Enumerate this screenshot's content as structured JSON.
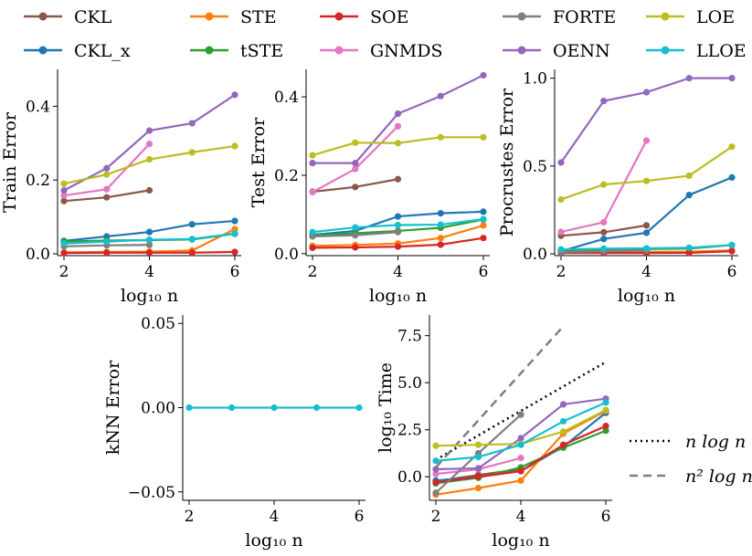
{
  "legend": [
    {
      "name": "CKL",
      "color": "#8c564b"
    },
    {
      "name": "CKL_x",
      "color": "#1f77b4"
    },
    {
      "name": "STE",
      "color": "#ff7f0e"
    },
    {
      "name": "tSTE",
      "color": "#2ca02c"
    },
    {
      "name": "SOE",
      "color": "#d62728"
    },
    {
      "name": "GNMDS",
      "color": "#e377c2"
    },
    {
      "name": "FORTE",
      "color": "#7f7f7f"
    },
    {
      "name": "OENN",
      "color": "#9467bd"
    },
    {
      "name": "LOE",
      "color": "#bcbd22"
    },
    {
      "name": "LLOE",
      "color": "#17becf"
    }
  ],
  "complexity_legend": [
    {
      "name": "n log n",
      "color": "#000000",
      "dash": "dotted"
    },
    {
      "name": "n² log n",
      "color": "#7f7f7f",
      "dash": "dashed"
    }
  ],
  "chart_data": [
    {
      "id": "train",
      "type": "line",
      "ylabel": "Train Error",
      "xlabel": "log₁₀ n",
      "xlim": [
        1.85,
        6.15
      ],
      "ylim": [
        -0.005,
        0.5
      ],
      "xticks": [
        "2",
        "4",
        "6"
      ],
      "yticks": [
        "0.0",
        "0.2",
        "0.4"
      ],
      "series": [
        {
          "name": "CKL",
          "x": [
            2,
            3,
            4
          ],
          "y": [
            0.143,
            0.153,
            0.172
          ]
        },
        {
          "name": "CKL_x",
          "x": [
            2,
            3,
            4,
            5,
            6
          ],
          "y": [
            0.035,
            0.047,
            0.059,
            0.08,
            0.089
          ]
        },
        {
          "name": "STE",
          "x": [
            2,
            3,
            4,
            5,
            6
          ],
          "y": [
            0.004,
            0.005,
            0.006,
            0.009,
            0.067
          ]
        },
        {
          "name": "tSTE",
          "x": [
            2,
            3,
            4,
            5,
            6
          ],
          "y": [
            0.033,
            0.036,
            0.037,
            0.039,
            0.054
          ]
        },
        {
          "name": "SOE",
          "x": [
            2,
            3,
            4,
            5,
            6
          ],
          "y": [
            0.002,
            0.003,
            0.003,
            0.003,
            0.005
          ]
        },
        {
          "name": "GNMDS",
          "x": [
            2,
            3,
            4
          ],
          "y": [
            0.158,
            0.175,
            0.298
          ]
        },
        {
          "name": "FORTE",
          "x": [
            2,
            3,
            4
          ],
          "y": [
            0.02,
            0.023,
            0.024
          ]
        },
        {
          "name": "OENN",
          "x": [
            2,
            3,
            4,
            5,
            6
          ],
          "y": [
            0.172,
            0.232,
            0.334,
            0.354,
            0.431
          ]
        },
        {
          "name": "LOE",
          "x": [
            2,
            3,
            4,
            5,
            6
          ],
          "y": [
            0.19,
            0.215,
            0.256,
            0.275,
            0.292
          ]
        },
        {
          "name": "LLOE",
          "x": [
            2,
            3,
            4,
            5,
            6
          ],
          "y": [
            0.028,
            0.033,
            0.038,
            0.04,
            0.055
          ]
        }
      ]
    },
    {
      "id": "test",
      "type": "line",
      "ylabel": "Test Error",
      "xlabel": "log₁₀ n",
      "xlim": [
        1.85,
        6.15
      ],
      "ylim": [
        -0.005,
        0.47
      ],
      "xticks": [
        "2",
        "4",
        "6"
      ],
      "yticks": [
        "0.0",
        "0.2",
        "0.4"
      ],
      "series": [
        {
          "name": "CKL",
          "x": [
            2,
            3,
            4
          ],
          "y": [
            0.158,
            0.17,
            0.19
          ]
        },
        {
          "name": "CKL_x",
          "x": [
            2,
            3,
            4,
            5,
            6
          ],
          "y": [
            0.048,
            0.058,
            0.095,
            0.103,
            0.107
          ]
        },
        {
          "name": "STE",
          "x": [
            2,
            3,
            4,
            5,
            6
          ],
          "y": [
            0.02,
            0.022,
            0.026,
            0.04,
            0.072
          ]
        },
        {
          "name": "tSTE",
          "x": [
            2,
            3,
            4,
            5,
            6
          ],
          "y": [
            0.046,
            0.052,
            0.058,
            0.066,
            0.087
          ]
        },
        {
          "name": "SOE",
          "x": [
            2,
            3,
            4,
            5,
            6
          ],
          "y": [
            0.015,
            0.016,
            0.018,
            0.023,
            0.04
          ]
        },
        {
          "name": "GNMDS",
          "x": [
            2,
            3,
            4
          ],
          "y": [
            0.157,
            0.216,
            0.325
          ]
        },
        {
          "name": "FORTE",
          "x": [
            2,
            3,
            4
          ],
          "y": [
            0.044,
            0.047,
            0.055
          ]
        },
        {
          "name": "OENN",
          "x": [
            2,
            3,
            4,
            5,
            6
          ],
          "y": [
            0.231,
            0.231,
            0.357,
            0.402,
            0.455
          ]
        },
        {
          "name": "LOE",
          "x": [
            2,
            3,
            4,
            5,
            6
          ],
          "y": [
            0.251,
            0.283,
            0.282,
            0.297,
            0.297
          ]
        },
        {
          "name": "LLOE",
          "x": [
            2,
            3,
            4,
            5,
            6
          ],
          "y": [
            0.055,
            0.067,
            0.073,
            0.074,
            0.088
          ]
        }
      ]
    },
    {
      "id": "procrustes",
      "type": "line",
      "ylabel": "Procrustes Error",
      "xlabel": "log₁₀ n",
      "xlim": [
        1.85,
        6.15
      ],
      "ylim": [
        -0.01,
        1.05
      ],
      "xticks": [
        "2",
        "4",
        "6"
      ],
      "yticks": [
        "0.0",
        "0.5",
        "1.0"
      ],
      "series": [
        {
          "name": "CKL",
          "x": [
            2,
            3,
            4
          ],
          "y": [
            0.103,
            0.123,
            0.162
          ]
        },
        {
          "name": "CKL_x",
          "x": [
            2,
            3,
            4,
            5,
            6
          ],
          "y": [
            0.015,
            0.085,
            0.12,
            0.335,
            0.435
          ]
        },
        {
          "name": "STE",
          "x": [
            2,
            3,
            4,
            5,
            6
          ],
          "y": [
            0.008,
            0.01,
            0.012,
            0.013,
            0.02
          ]
        },
        {
          "name": "tSTE",
          "x": [
            2,
            3,
            4,
            5,
            6
          ],
          "y": [
            0.02,
            0.025,
            0.028,
            0.03,
            0.05
          ]
        },
        {
          "name": "SOE",
          "x": [
            2,
            3,
            4,
            5,
            6
          ],
          "y": [
            0.005,
            0.005,
            0.005,
            0.006,
            0.015
          ]
        },
        {
          "name": "GNMDS",
          "x": [
            2,
            3,
            4
          ],
          "y": [
            0.125,
            0.18,
            0.645
          ]
        },
        {
          "name": "FORTE",
          "x": [
            2,
            3,
            4
          ],
          "y": [
            0.01,
            0.015,
            0.02
          ]
        },
        {
          "name": "OENN",
          "x": [
            2,
            3,
            4,
            5,
            6
          ],
          "y": [
            0.52,
            0.87,
            0.92,
            1.0,
            1.0
          ]
        },
        {
          "name": "LOE",
          "x": [
            2,
            3,
            4,
            5,
            6
          ],
          "y": [
            0.31,
            0.395,
            0.415,
            0.445,
            0.61
          ]
        },
        {
          "name": "LLOE",
          "x": [
            2,
            3,
            4,
            5,
            6
          ],
          "y": [
            0.025,
            0.03,
            0.032,
            0.035,
            0.05
          ]
        }
      ]
    },
    {
      "id": "knn",
      "type": "line",
      "ylabel": "kNN Error",
      "xlabel": "log₁₀ n",
      "xlim": [
        1.85,
        6.15
      ],
      "ylim": [
        -0.055,
        0.055
      ],
      "xticks": [
        "2",
        "4",
        "6"
      ],
      "yticks": [
        "−0.05",
        "0.00",
        "0.05"
      ],
      "series": [
        {
          "name": "LLOE",
          "x": [
            2,
            3,
            4,
            5,
            6
          ],
          "y": [
            0.0,
            0.0,
            0.0,
            0.0,
            0.0
          ]
        }
      ]
    },
    {
      "id": "time",
      "type": "line",
      "ylabel": "log₁₀ Time",
      "xlabel": "log₁₀ n",
      "xlim": [
        1.85,
        6.15
      ],
      "ylim": [
        -1.25,
        8.6
      ],
      "xticks": [
        "2",
        "4",
        "6"
      ],
      "yticks": [
        "0.0",
        "2.5",
        "5.0",
        "7.5"
      ],
      "series": [
        {
          "name": "CKL",
          "x": [
            2,
            3,
            4
          ],
          "y": [
            -0.25,
            0.1,
            0.4
          ]
        },
        {
          "name": "CKL_x",
          "x": [
            2,
            3,
            4,
            5,
            6
          ],
          "y": [
            -0.2,
            0.0,
            0.3,
            1.6,
            3.4
          ]
        },
        {
          "name": "STE",
          "x": [
            2,
            3,
            4,
            5,
            6
          ],
          "y": [
            -0.95,
            -0.6,
            -0.2,
            2.3,
            3.5
          ]
        },
        {
          "name": "tSTE",
          "x": [
            2,
            3,
            4,
            5,
            6
          ],
          "y": [
            -0.35,
            -0.05,
            0.5,
            1.55,
            2.45
          ]
        },
        {
          "name": "SOE",
          "x": [
            2,
            3,
            4,
            5,
            6
          ],
          "y": [
            -0.3,
            0.0,
            0.3,
            1.7,
            2.7
          ]
        },
        {
          "name": "GNMDS",
          "x": [
            2,
            3,
            4
          ],
          "y": [
            0.15,
            0.4,
            1.0
          ]
        },
        {
          "name": "FORTE",
          "x": [
            2,
            3,
            4
          ],
          "y": [
            -0.85,
            1.25,
            3.3
          ]
        },
        {
          "name": "OENN",
          "x": [
            2,
            3,
            4,
            5,
            6
          ],
          "y": [
            0.4,
            0.45,
            2.05,
            3.85,
            4.15
          ]
        },
        {
          "name": "LOE",
          "x": [
            2,
            3,
            4,
            5,
            6
          ],
          "y": [
            1.65,
            1.7,
            1.75,
            2.4,
            3.55
          ]
        },
        {
          "name": "LLOE",
          "x": [
            2,
            3,
            4,
            5,
            6
          ],
          "y": [
            0.85,
            1.05,
            1.7,
            2.95,
            3.95
          ]
        }
      ],
      "reference": [
        {
          "name": "n log n",
          "x": [
            2,
            6
          ],
          "y": [
            0.9,
            6.1
          ],
          "dash": "dotted"
        },
        {
          "name": "n² log n",
          "x": [
            2,
            5
          ],
          "y": [
            0.5,
            8.0
          ],
          "dash": "dashed"
        }
      ]
    }
  ]
}
